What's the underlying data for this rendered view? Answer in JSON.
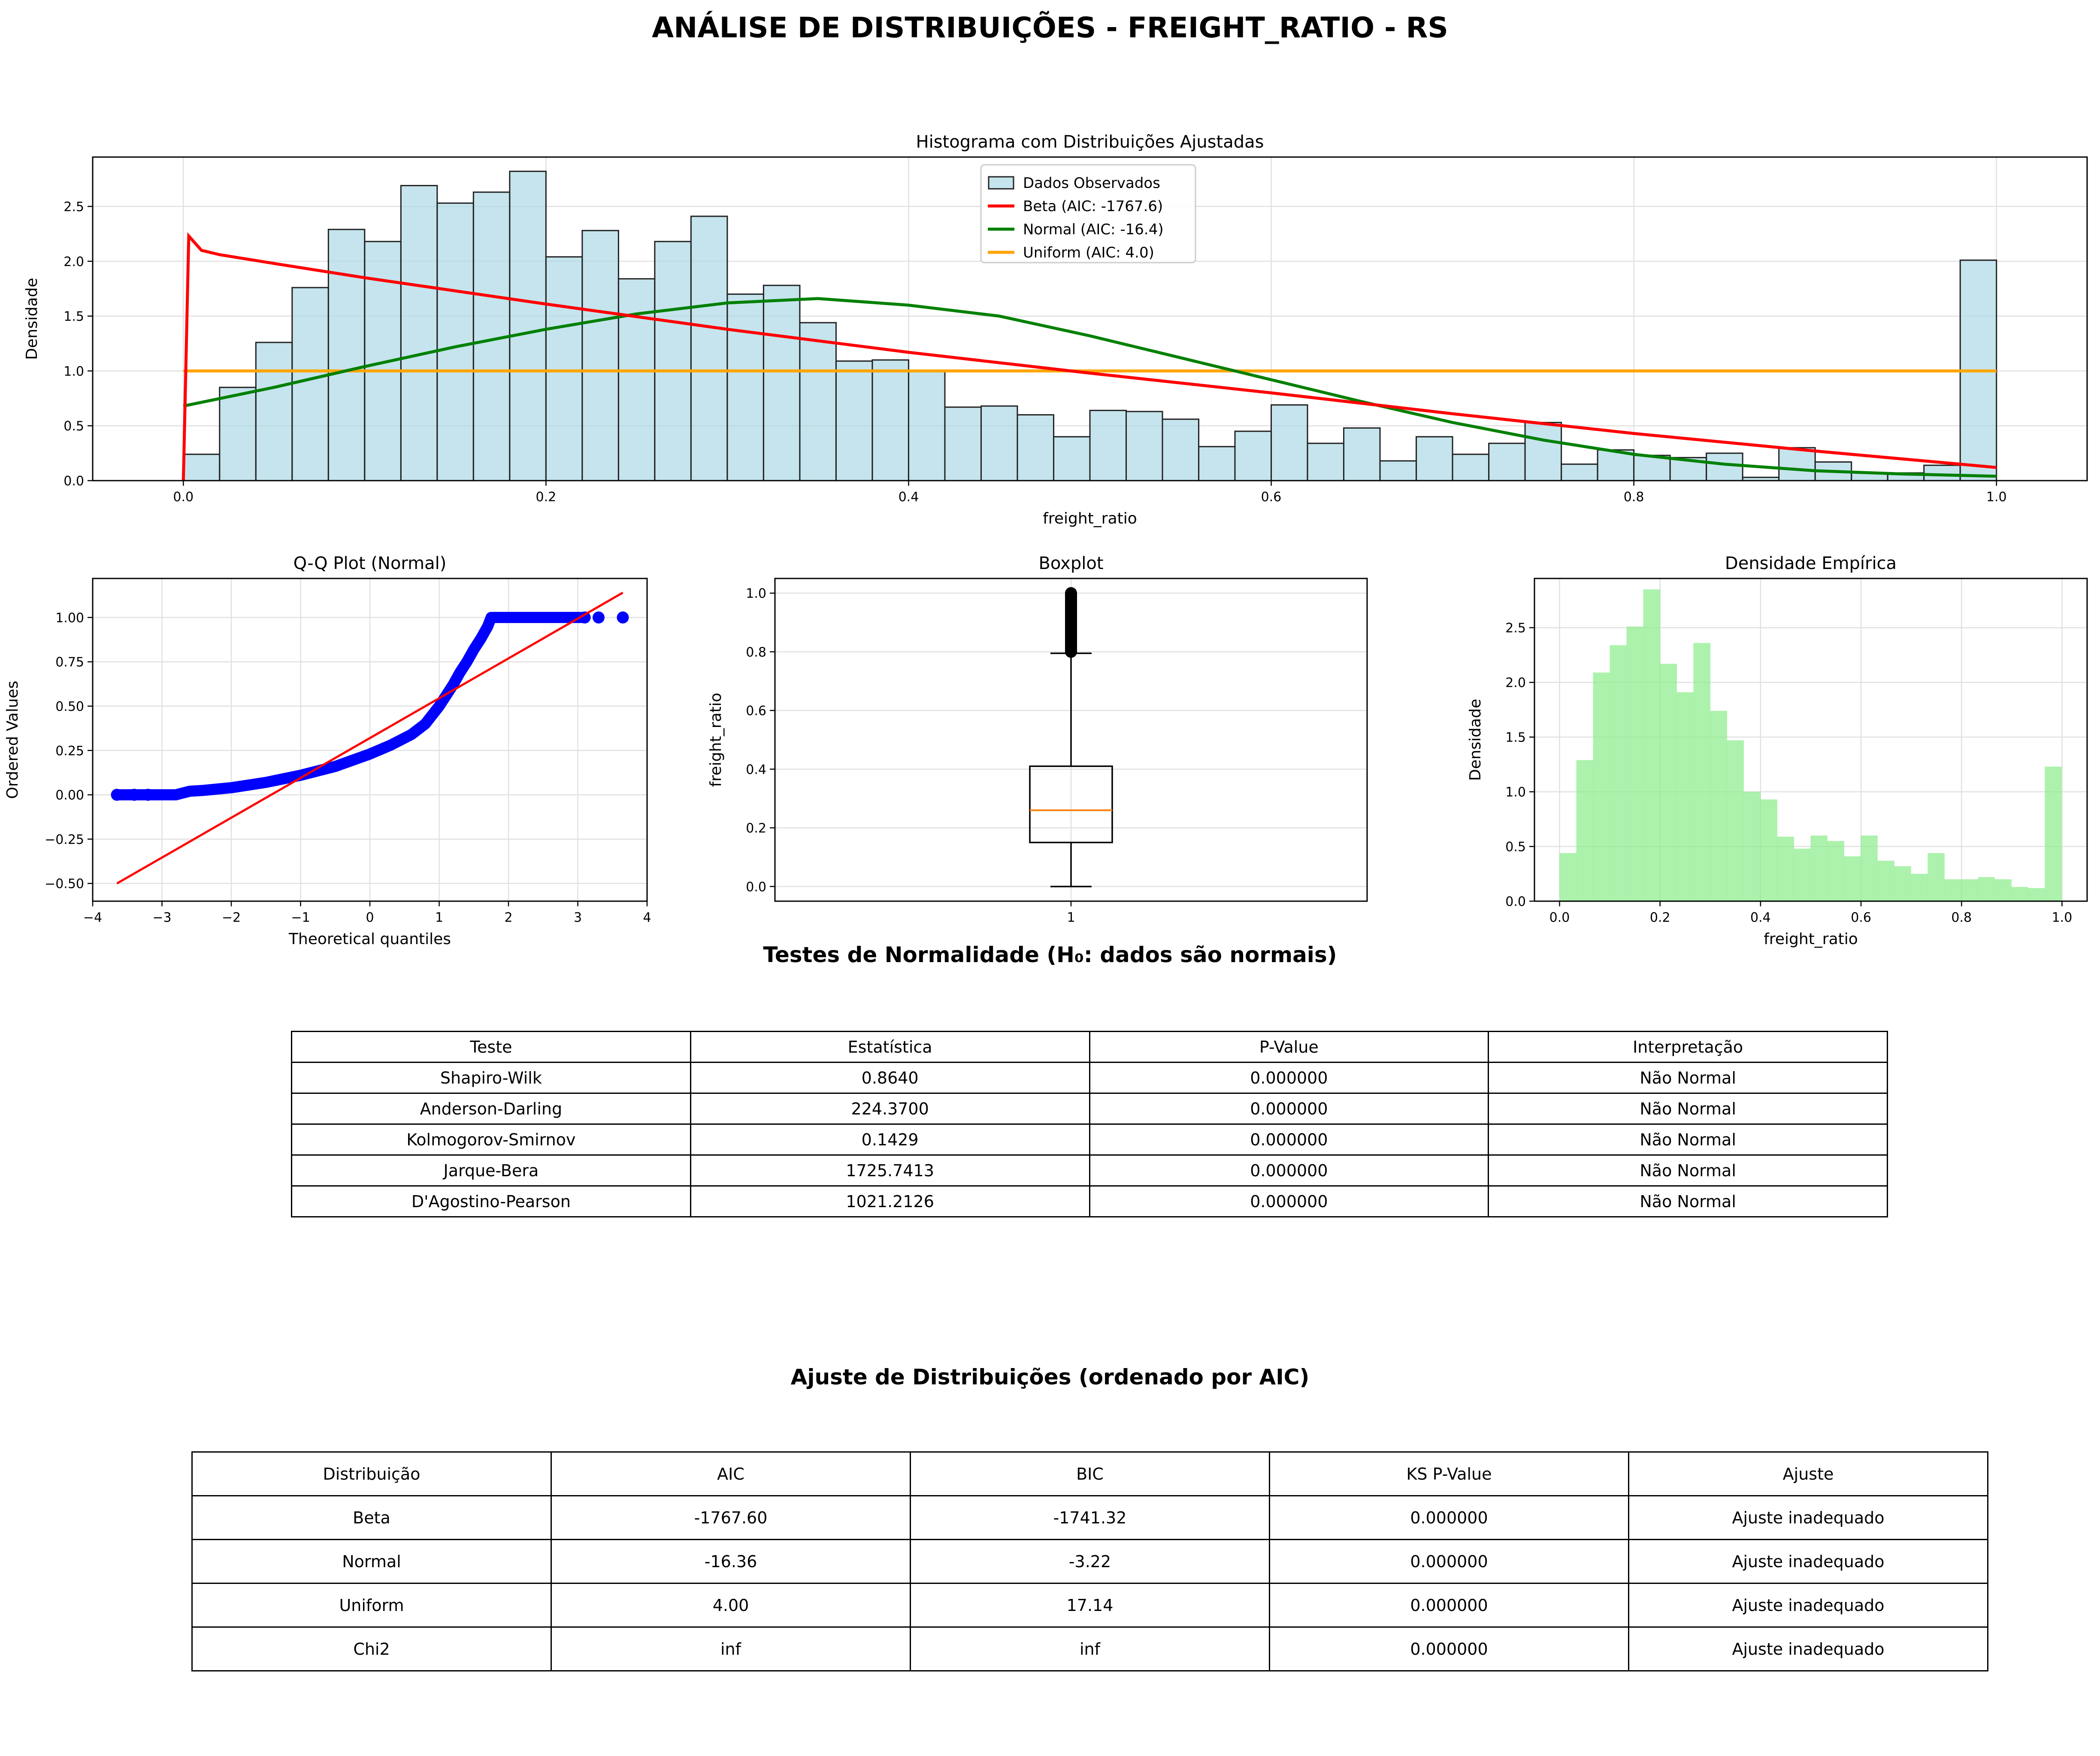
{
  "title": "ANÁLISE DE DISTRIBUIÇÕES - FREIGHT_RATIO - RS",
  "colors": {
    "hist_fill": "#add8e6",
    "beta": "#ff0000",
    "normal": "#008000",
    "uniform": "#ffa500",
    "qq_points": "#0000ff",
    "qq_line": "#ff0000",
    "box_median": "#ff7f0e",
    "density_fill": "#90ee90"
  },
  "chart_data": [
    {
      "id": "histogram",
      "type": "bar",
      "title": "Histograma com Distribuições Ajustadas",
      "xlabel": "freight_ratio",
      "ylabel": "Densidade",
      "xlim": [
        -0.05,
        1.05
      ],
      "ylim": [
        0,
        2.95
      ],
      "xticks": [
        "0.0",
        "0.2",
        "0.4",
        "0.6",
        "0.8",
        "1.0"
      ],
      "yticks": [
        "0.0",
        "0.5",
        "1.0",
        "1.5",
        "2.0",
        "2.5"
      ],
      "grid": true,
      "legend_position": "top-center",
      "bin_start": 0,
      "bin_width": 0.02,
      "values": [
        0.24,
        0.85,
        1.26,
        1.76,
        2.29,
        2.18,
        2.69,
        2.53,
        2.63,
        2.82,
        2.04,
        2.28,
        1.84,
        2.18,
        2.41,
        1.7,
        1.78,
        1.44,
        1.09,
        1.1,
        1.0,
        0.67,
        0.68,
        0.6,
        0.4,
        0.64,
        0.63,
        0.56,
        0.31,
        0.45,
        0.69,
        0.34,
        0.48,
        0.18,
        0.4,
        0.24,
        0.34,
        0.53,
        0.15,
        0.28,
        0.23,
        0.21,
        0.25,
        0.03,
        0.3,
        0.17,
        0.07,
        0.07,
        0.14,
        2.01
      ],
      "legend": [
        "Dados Observados",
        "Beta (AIC: -1767.6)",
        "Normal (AIC: -16.4)",
        "Uniform (AIC: 4.0)"
      ],
      "curves": {
        "beta": {
          "x": [
            0,
            0.003,
            0.01,
            0.02,
            0.05,
            0.1,
            0.2,
            0.3,
            0.4,
            0.5,
            0.6,
            0.7,
            0.8,
            0.9,
            1.0
          ],
          "y": [
            0,
            2.23,
            2.1,
            2.06,
            1.98,
            1.85,
            1.61,
            1.38,
            1.17,
            0.98,
            0.8,
            0.61,
            0.43,
            0.27,
            0.12
          ]
        },
        "normal": {
          "x": [
            0,
            0.05,
            0.1,
            0.15,
            0.2,
            0.25,
            0.3,
            0.35,
            0.4,
            0.45,
            0.5,
            0.55,
            0.6,
            0.65,
            0.7,
            0.75,
            0.8,
            0.85,
            0.9,
            0.95,
            1.0
          ],
          "y": [
            0.68,
            0.85,
            1.04,
            1.22,
            1.38,
            1.52,
            1.62,
            1.66,
            1.6,
            1.5,
            1.32,
            1.12,
            0.92,
            0.72,
            0.53,
            0.37,
            0.24,
            0.15,
            0.09,
            0.06,
            0.04
          ]
        },
        "uniform": {
          "x": [
            0,
            1
          ],
          "y": [
            1,
            1
          ]
        }
      }
    },
    {
      "id": "qq",
      "type": "scatter",
      "title": "Q-Q Plot (Normal)",
      "xlabel": "Theoretical quantiles",
      "ylabel": "Ordered Values",
      "xlim": [
        -4,
        4
      ],
      "ylim": [
        -0.6,
        1.22
      ],
      "xticks": [
        "−4",
        "−3",
        "−2",
        "−1",
        "0",
        "1",
        "2",
        "3",
        "4"
      ],
      "yticks": [
        "−0.50",
        "−0.25",
        "0.00",
        "0.25",
        "0.50",
        "0.75",
        "1.00"
      ],
      "grid": true,
      "line": {
        "x": [
          -3.65,
          3.65
        ],
        "y": [
          -0.5,
          1.14
        ]
      },
      "curve": {
        "x": [
          -3.65,
          -3.4,
          -3.2,
          -3.0,
          -2.8,
          -2.6,
          -2.4,
          -2.0,
          -1.5,
          -1.0,
          -0.5,
          0.0,
          0.3,
          0.6,
          0.8,
          1.0,
          1.1,
          1.2,
          1.3,
          1.4,
          1.5,
          1.6,
          1.7,
          1.75
        ],
        "y": [
          0.0,
          0.0,
          0.0,
          0.0,
          0.0,
          0.02,
          0.025,
          0.04,
          0.07,
          0.11,
          0.16,
          0.23,
          0.28,
          0.34,
          0.4,
          0.5,
          0.56,
          0.62,
          0.69,
          0.75,
          0.82,
          0.88,
          0.95,
          1.0
        ]
      },
      "top_points_x": [
        1.75,
        3.1,
        3.3,
        3.65
      ]
    },
    {
      "id": "boxplot",
      "type": "boxplot",
      "title": "Boxplot",
      "ylabel": "freight_ratio",
      "xticks": [
        "1"
      ],
      "yticks": [
        "0.0",
        "0.2",
        "0.4",
        "0.6",
        "0.8",
        "1.0"
      ],
      "ylim": [
        -0.05,
        1.05
      ],
      "grid": true,
      "min": 0.0,
      "q1": 0.15,
      "median": 0.26,
      "q3": 0.41,
      "whisker_high": 0.795,
      "outliers_range": [
        0.8,
        1.0
      ]
    },
    {
      "id": "density",
      "type": "bar",
      "title": "Densidade Empírica",
      "xlabel": "freight_ratio",
      "ylabel": "Densidade",
      "xlim": [
        -0.05,
        1.05
      ],
      "ylim": [
        0,
        2.95
      ],
      "xticks": [
        "0.0",
        "0.2",
        "0.4",
        "0.6",
        "0.8",
        "1.0"
      ],
      "yticks": [
        "0.0",
        "0.5",
        "1.0",
        "1.5",
        "2.0",
        "2.5"
      ],
      "grid": true,
      "bin_start": 0,
      "bin_width": 0.0333,
      "values": [
        0.44,
        1.29,
        2.09,
        2.34,
        2.51,
        2.85,
        2.17,
        1.91,
        2.36,
        1.74,
        1.47,
        1.0,
        0.93,
        0.59,
        0.48,
        0.6,
        0.55,
        0.41,
        0.6,
        0.37,
        0.32,
        0.25,
        0.44,
        0.2,
        0.2,
        0.22,
        0.2,
        0.13,
        0.12,
        1.23
      ]
    }
  ],
  "tests": {
    "title": "Testes de Normalidade (H₀: dados são normais)",
    "headers": [
      "Teste",
      "Estatística",
      "P-Value",
      "Interpretação"
    ],
    "rows": [
      [
        "Shapiro-Wilk",
        "0.8640",
        "0.000000",
        "Não Normal"
      ],
      [
        "Anderson-Darling",
        "224.3700",
        "0.000000",
        "Não Normal"
      ],
      [
        "Kolmogorov-Smirnov",
        "0.1429",
        "0.000000",
        "Não Normal"
      ],
      [
        "Jarque-Bera",
        "1725.7413",
        "0.000000",
        "Não Normal"
      ],
      [
        "D'Agostino-Pearson",
        "1021.2126",
        "0.000000",
        "Não Normal"
      ]
    ]
  },
  "distributions": {
    "title": "Ajuste de Distribuições (ordenado por AIC)",
    "headers": [
      "Distribuição",
      "AIC",
      "BIC",
      "KS P-Value",
      "Ajuste"
    ],
    "rows": [
      [
        "Beta",
        "-1767.60",
        "-1741.32",
        "0.000000",
        "Ajuste inadequado"
      ],
      [
        "Normal",
        "-16.36",
        "-3.22",
        "0.000000",
        "Ajuste inadequado"
      ],
      [
        "Uniform",
        "4.00",
        "17.14",
        "0.000000",
        "Ajuste inadequado"
      ],
      [
        "Chi2",
        "inf",
        "inf",
        "0.000000",
        "Ajuste inadequado"
      ]
    ]
  }
}
